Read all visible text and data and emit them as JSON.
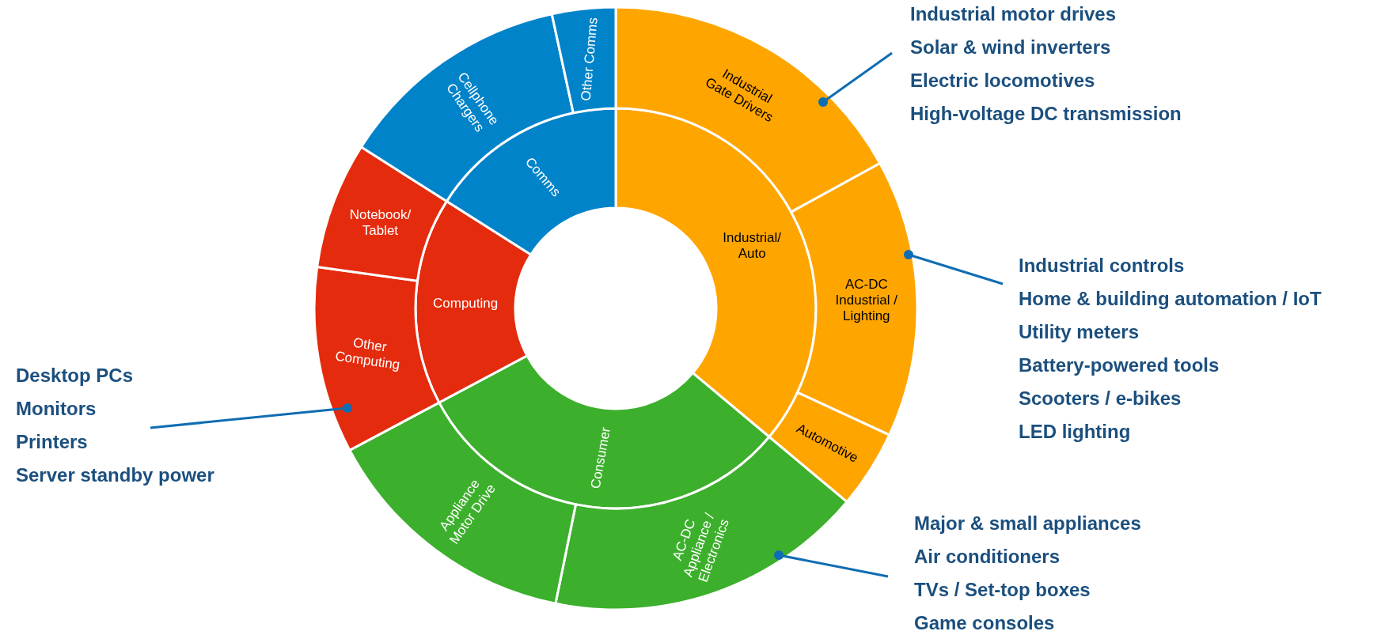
{
  "chart_data": [
    {
      "type": "donut",
      "categories": [
        "Industrial/Auto",
        "Consumer",
        "Computing",
        "Comms"
      ],
      "values": [
        36.1,
        31.1,
        16.8,
        16.0
      ],
      "colors": [
        "#ffa500",
        "#3caf2c",
        "#e42b0e",
        "#0083c9"
      ]
    },
    {
      "type": "donut",
      "categories": [
        "Industrial Gate Drivers",
        "AC-DC Industrial / Lighting",
        "Automotive",
        "AC-DC Appliance / Electronics",
        "Appliance Motor Drive",
        "Other Computing",
        "Notebook/Tablet",
        "Cellphone Chargers",
        "Other Comms"
      ],
      "values": [
        17.0,
        14.9,
        4.2,
        17.1,
        14.0,
        10.0,
        6.8,
        12.6,
        3.4
      ],
      "colors": [
        "#ffa500",
        "#ffa500",
        "#ffa500",
        "#3caf2c",
        "#3caf2c",
        "#e42b0e",
        "#e42b0e",
        "#0083c9",
        "#0083c9"
      ],
      "annotations": [
        {
          "text": "Industrial motor drives\nSolar & wind inverters\nElectric locomotives\nHigh-voltage DC transmission",
          "x": "Industrial Gate Drivers"
        },
        {
          "text": "Industrial controls\nHome & building automation / IoT\nUtility meters\nBattery-powered tools\nScooters / e-bikes\nLED lighting",
          "x": "AC-DC Industrial / Lighting"
        },
        {
          "text": "Desktop PCs\nMonitors\nPrinters\nServer standby power",
          "x": "Other Computing"
        },
        {
          "text": "Major & small appliances\nAir conditioners\nTVs / Set-top boxes\nGame consoles",
          "x": "AC-DC Appliance / Electronics"
        }
      ]
    }
  ]
}
